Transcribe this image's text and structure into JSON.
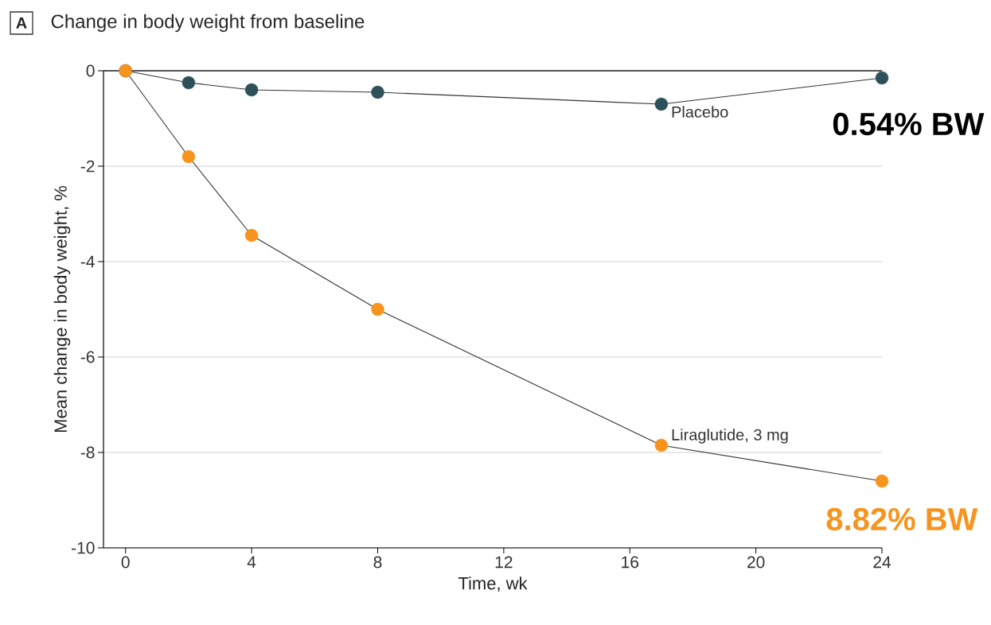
{
  "chart_data": {
    "type": "line",
    "title": "Change in body weight from baseline",
    "xlabel": "Time, wk",
    "ylabel": "Mean change in body weight, %",
    "x": [
      0,
      2,
      4,
      8,
      17,
      24
    ],
    "series": [
      {
        "name": "Placebo",
        "color": "#2d505a",
        "values": [
          0,
          -0.25,
          -0.4,
          -0.45,
          -0.7,
          -0.15
        ]
      },
      {
        "name": "Liraglutide, 3 mg",
        "color": "#f7941d",
        "values": [
          0,
          -1.8,
          -3.45,
          -5.0,
          -7.85,
          -8.6
        ]
      }
    ],
    "xlim": [
      -0.7,
      24
    ],
    "ylim": [
      -10,
      0
    ],
    "xticks": [
      0,
      4,
      8,
      12,
      16,
      20,
      24
    ],
    "yticks": [
      0,
      -2,
      -4,
      -6,
      -8,
      -10
    ],
    "grid": "y",
    "marker": "circle",
    "line_style": "solid",
    "ref_lines": [
      {
        "axis": "y",
        "value": 0,
        "color": "#222222"
      }
    ],
    "annotations": [
      "A",
      "0.54% BW",
      "8.82% BW"
    ]
  }
}
